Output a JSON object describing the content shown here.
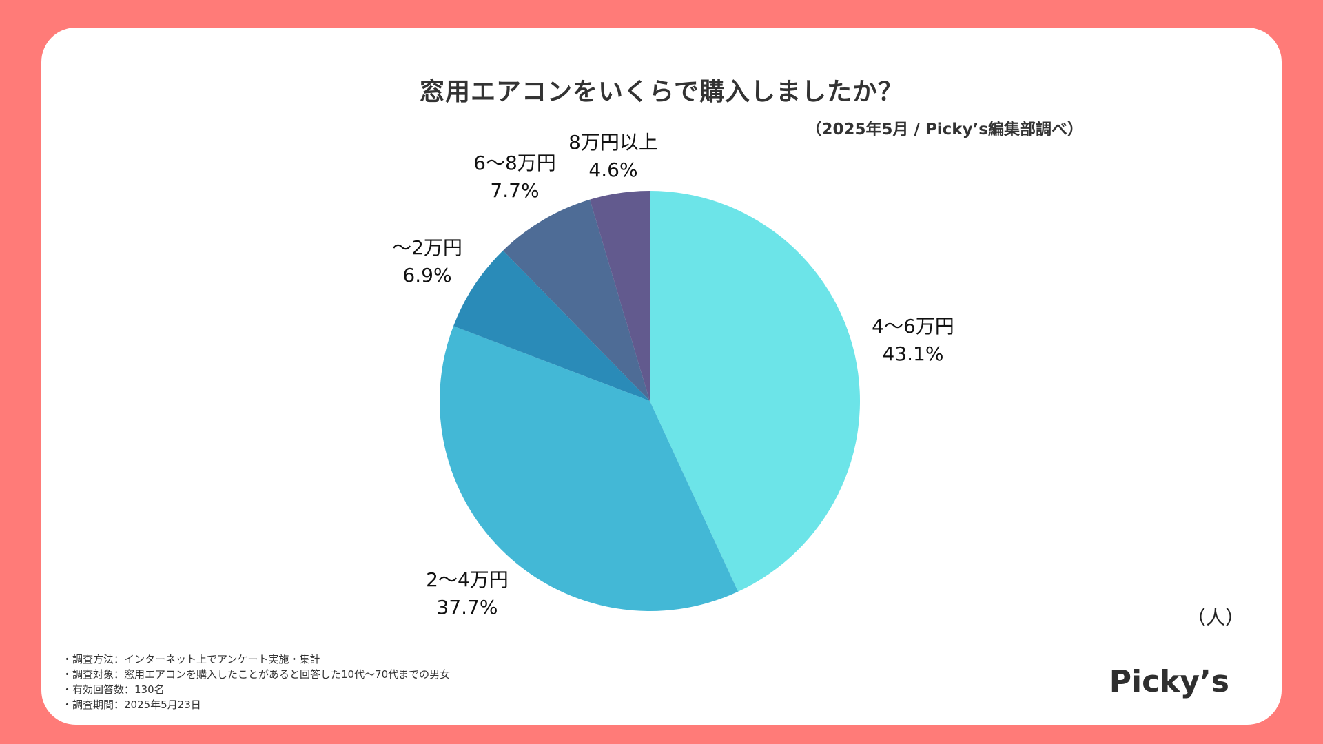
{
  "chart_data": {
    "type": "pie",
    "title": "窓用エアコンをいくらで購入しましたか？",
    "subtitle": "（2025年5月 / Picky’s編集部調べ）",
    "unit_label": "（人）",
    "slices": [
      {
        "label": "4〜6万円",
        "value_text": "43.1%",
        "value": 43.1,
        "color": "#6CE4E8"
      },
      {
        "label": "2〜4万円",
        "value_text": "37.7%",
        "value": 37.7,
        "color": "#43B8D6"
      },
      {
        "label": "〜2万円",
        "value_text": "6.9%",
        "value": 6.9,
        "color": "#2A8BB8"
      },
      {
        "label": "6〜8万円",
        "value_text": "7.7%",
        "value": 7.7,
        "color": "#4E6C96"
      },
      {
        "label": "8万円以上",
        "value_text": "4.6%",
        "value": 4.6,
        "color": "#625A8E"
      }
    ]
  },
  "notes": [
    "・調査方法：インターネット上でアンケート実施・集計",
    "・調査対象：窓用エアコンを購入したことがあると回答した10代〜70代までの男女",
    "・有効回答数：130名",
    "・調査期間：2025年5月23日"
  ],
  "brand": "Picky’s",
  "colors": {
    "background": "#FF7B78",
    "card": "#FFFFFF"
  }
}
